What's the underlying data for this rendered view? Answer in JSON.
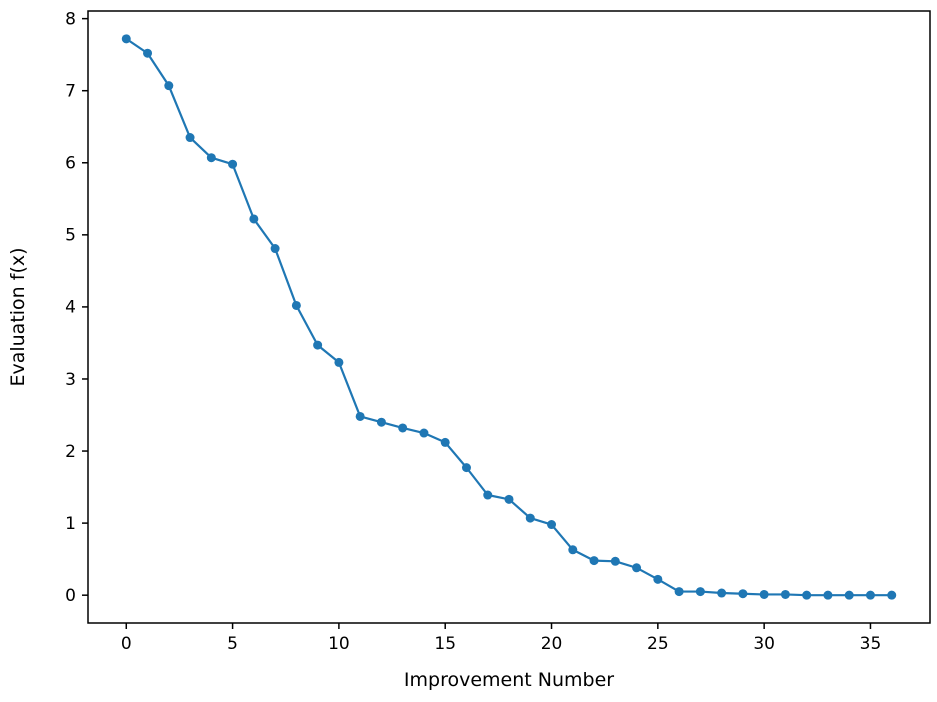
{
  "chart_data": {
    "type": "line",
    "title": "",
    "xlabel": "Improvement Number",
    "ylabel": "Evaluation f(x)",
    "x": [
      0,
      1,
      2,
      3,
      4,
      5,
      6,
      7,
      8,
      9,
      10,
      11,
      12,
      13,
      14,
      15,
      16,
      17,
      18,
      19,
      20,
      21,
      22,
      23,
      24,
      25,
      26,
      27,
      28,
      29,
      30,
      31,
      32,
      33,
      34,
      35,
      36
    ],
    "values": [
      7.72,
      7.52,
      7.07,
      6.35,
      6.07,
      5.98,
      5.22,
      4.81,
      4.02,
      3.47,
      3.23,
      2.48,
      2.4,
      2.32,
      2.25,
      2.12,
      1.77,
      1.39,
      1.33,
      1.07,
      0.98,
      0.63,
      0.48,
      0.47,
      0.38,
      0.22,
      0.05,
      0.05,
      0.03,
      0.02,
      0.01,
      0.01,
      0.0,
      0.0,
      0.0,
      0.0,
      0.0
    ],
    "xlim": [
      -1.8,
      37.8
    ],
    "ylim": [
      -0.386,
      8.106
    ],
    "xticks": [
      0,
      5,
      10,
      15,
      20,
      25,
      30,
      35
    ],
    "yticks": [
      0,
      1,
      2,
      3,
      4,
      5,
      6,
      7,
      8
    ],
    "line_color": "#1f77b4",
    "marker": "circle",
    "marker_size": 4.5,
    "line_width": 2.2,
    "grid": false,
    "legend": null,
    "spine_color": "#000000"
  }
}
